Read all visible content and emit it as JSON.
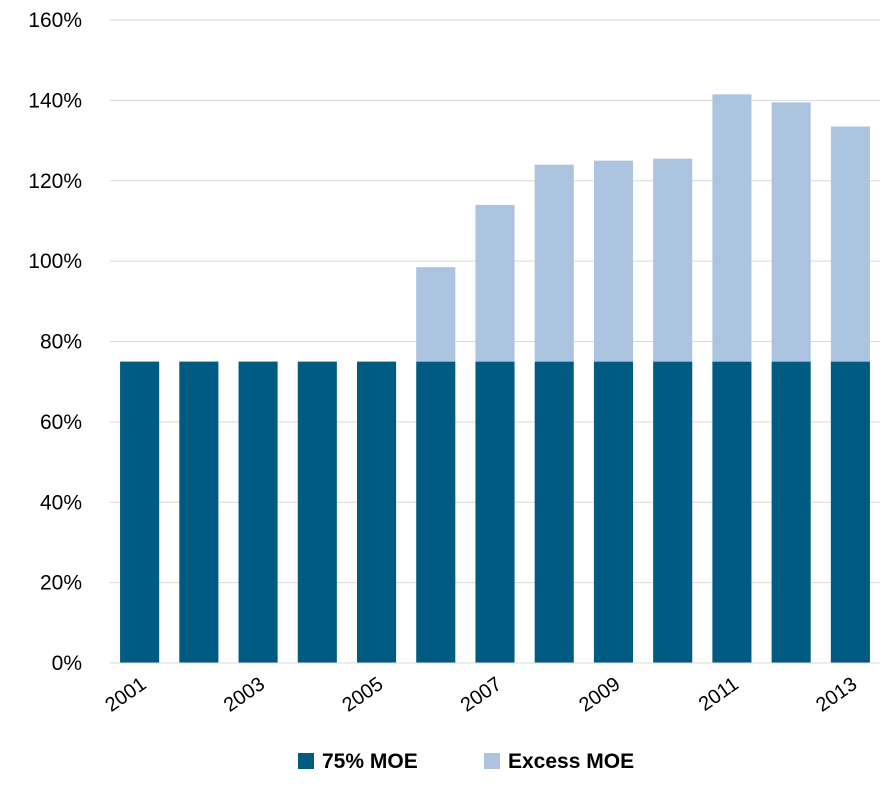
{
  "chart_data": {
    "type": "bar",
    "stacked": true,
    "title": "",
    "xlabel": "",
    "ylabel": "",
    "categories": [
      "2001",
      "2002",
      "2003",
      "2004",
      "2005",
      "2006",
      "2007",
      "2008",
      "2009",
      "2010",
      "2011",
      "2012",
      "2013"
    ],
    "x_tick_labels": [
      "2001",
      "2003",
      "2005",
      "2007",
      "2009",
      "2011",
      "2013"
    ],
    "series": [
      {
        "name": "75% MOE",
        "color": "#005b82",
        "values": [
          75,
          75,
          75,
          75,
          75,
          75,
          75,
          75,
          75,
          75,
          75,
          75,
          75
        ]
      },
      {
        "name": "Excess MOE",
        "color": "#adc4e0",
        "values": [
          0,
          0,
          0,
          0,
          0,
          23.5,
          39,
          49,
          50,
          50.5,
          66.5,
          64.5,
          58.5
        ]
      }
    ],
    "ylim": [
      0,
      160
    ],
    "y_ticks": [
      "0%",
      "20%",
      "40%",
      "60%",
      "80%",
      "100%",
      "120%",
      "140%",
      "160%"
    ],
    "y_tick_values": [
      0,
      20,
      40,
      60,
      80,
      100,
      120,
      140,
      160
    ],
    "grid": true,
    "legend_position": "bottom"
  }
}
